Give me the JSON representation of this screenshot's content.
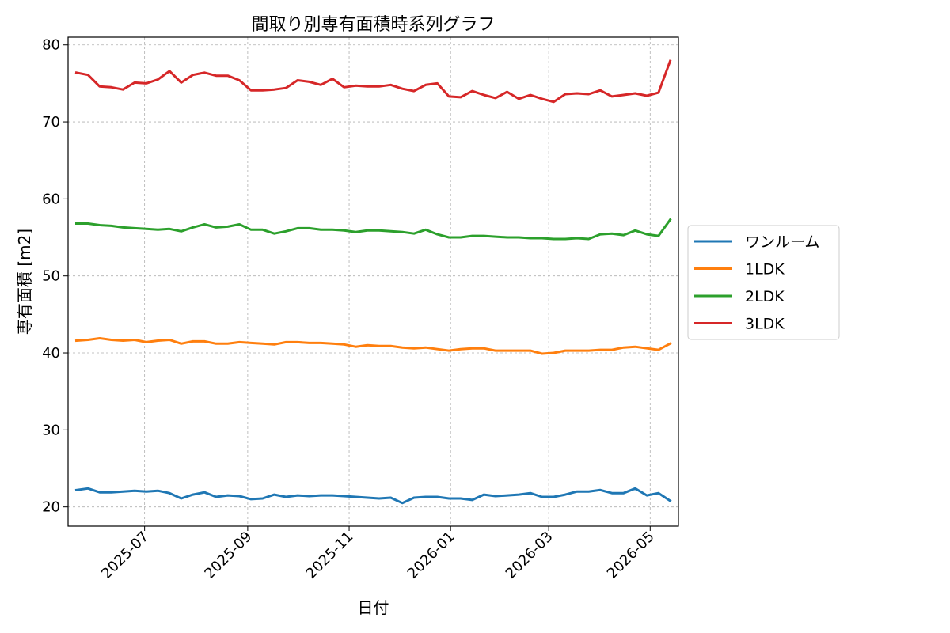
{
  "chart_data": {
    "type": "line",
    "title": "間取り別専有面積時系列グラフ",
    "xlabel": "日付",
    "ylabel": "専有面積 [m2]",
    "ylim": [
      17.5,
      81
    ],
    "yticks": [
      20,
      30,
      40,
      50,
      60,
      70,
      80
    ],
    "xlim": [
      "2025-05-16",
      "2026-05-18"
    ],
    "xticks": [
      "2025-07",
      "2025-09",
      "2025-11",
      "2026-01",
      "2026-03",
      "2026-05"
    ],
    "grid": true,
    "legend_position": "outside-right",
    "x": [
      "2025-05-21",
      "2025-05-28",
      "2025-06-04",
      "2025-06-11",
      "2025-06-18",
      "2025-06-25",
      "2025-07-02",
      "2025-07-09",
      "2025-07-16",
      "2025-07-23",
      "2025-07-30",
      "2025-08-06",
      "2025-08-13",
      "2025-08-20",
      "2025-08-27",
      "2025-09-03",
      "2025-09-10",
      "2025-09-17",
      "2025-09-24",
      "2025-10-01",
      "2025-10-08",
      "2025-10-15",
      "2025-10-22",
      "2025-10-29",
      "2025-11-05",
      "2025-11-12",
      "2025-11-19",
      "2025-11-26",
      "2025-12-03",
      "2025-12-10",
      "2025-12-17",
      "2025-12-24",
      "2025-12-31",
      "2026-01-07",
      "2026-01-14",
      "2026-01-21",
      "2026-01-28",
      "2026-02-04",
      "2026-02-11",
      "2026-02-18",
      "2026-02-25",
      "2026-03-04",
      "2026-03-11",
      "2026-03-18",
      "2026-03-25",
      "2026-04-01",
      "2026-04-08",
      "2026-04-15",
      "2026-04-22",
      "2026-04-29",
      "2026-05-06",
      "2026-05-13"
    ],
    "series": [
      {
        "name": "ワンルーム",
        "color": "#1f77b4",
        "values": [
          22.2,
          22.4,
          21.9,
          21.9,
          22.0,
          22.1,
          22.0,
          22.1,
          21.8,
          21.1,
          21.6,
          21.9,
          21.3,
          21.5,
          21.4,
          21.0,
          21.1,
          21.6,
          21.3,
          21.5,
          21.4,
          21.5,
          21.5,
          21.4,
          21.3,
          21.2,
          21.1,
          21.2,
          20.5,
          21.2,
          21.3,
          21.3,
          21.1,
          21.1,
          20.9,
          21.6,
          21.4,
          21.5,
          21.6,
          21.8,
          21.3,
          21.3,
          21.6,
          22.0,
          22.0,
          22.2,
          21.8,
          21.8,
          22.4,
          21.5,
          21.8,
          20.8
        ]
      },
      {
        "name": "1LDK",
        "color": "#ff7f0e",
        "values": [
          41.6,
          41.7,
          41.9,
          41.7,
          41.6,
          41.7,
          41.4,
          41.6,
          41.7,
          41.2,
          41.5,
          41.5,
          41.2,
          41.2,
          41.4,
          41.3,
          41.2,
          41.1,
          41.4,
          41.4,
          41.3,
          41.3,
          41.2,
          41.1,
          40.8,
          41.0,
          40.9,
          40.9,
          40.7,
          40.6,
          40.7,
          40.5,
          40.3,
          40.5,
          40.6,
          40.6,
          40.3,
          40.3,
          40.3,
          40.3,
          39.9,
          40.0,
          40.3,
          40.3,
          40.3,
          40.4,
          40.4,
          40.7,
          40.8,
          40.6,
          40.4,
          41.2
        ]
      },
      {
        "name": "2LDK",
        "color": "#2ca02c",
        "values": [
          56.8,
          56.8,
          56.6,
          56.5,
          56.3,
          56.2,
          56.1,
          56.0,
          56.1,
          55.8,
          56.3,
          56.7,
          56.3,
          56.4,
          56.7,
          56.0,
          56.0,
          55.5,
          55.8,
          56.2,
          56.2,
          56.0,
          56.0,
          55.9,
          55.7,
          55.9,
          55.9,
          55.8,
          55.7,
          55.5,
          56.0,
          55.4,
          55.0,
          55.0,
          55.2,
          55.2,
          55.1,
          55.0,
          55.0,
          54.9,
          54.9,
          54.8,
          54.8,
          54.9,
          54.8,
          55.4,
          55.5,
          55.3,
          55.9,
          55.4,
          55.2,
          57.3
        ]
      },
      {
        "name": "3LDK",
        "color": "#d62728",
        "values": [
          76.4,
          76.1,
          74.6,
          74.5,
          74.2,
          75.1,
          75.0,
          75.5,
          76.6,
          75.1,
          76.1,
          76.4,
          76.0,
          76.0,
          75.4,
          74.1,
          74.1,
          74.2,
          74.4,
          75.4,
          75.2,
          74.8,
          75.6,
          74.5,
          74.7,
          74.6,
          74.6,
          74.8,
          74.3,
          74.0,
          74.8,
          75.0,
          73.3,
          73.2,
          74.0,
          73.5,
          73.1,
          73.9,
          73.0,
          73.5,
          73.0,
          72.6,
          73.6,
          73.7,
          73.6,
          74.1,
          73.3,
          73.5,
          73.7,
          73.4,
          73.8,
          77.9
        ]
      }
    ]
  }
}
